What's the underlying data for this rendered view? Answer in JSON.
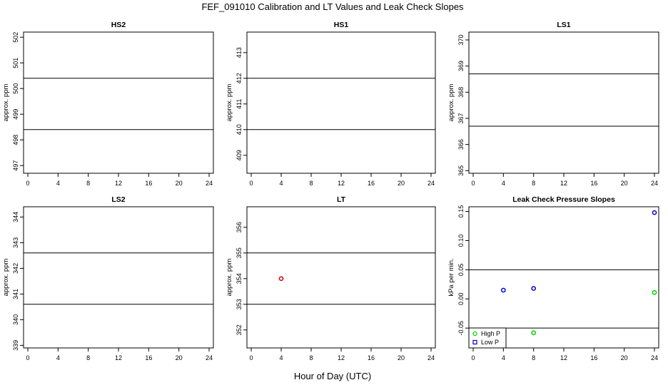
{
  "figure": {
    "title": "FEF_091010  Calibration and LT Values and Leak Check Slopes",
    "xlabel": "Hour of Day (UTC)"
  },
  "chart_data": [
    {
      "id": "hs2",
      "type": "scatter",
      "title": "HS2",
      "ylabel": "approx. ppm",
      "xlabel": "",
      "xlim": [
        0,
        24
      ],
      "ylim": [
        496.7,
        502.2
      ],
      "xticks": [
        0,
        4,
        8,
        12,
        16,
        20,
        24
      ],
      "yticks": [
        497,
        498,
        499,
        500,
        501,
        502
      ],
      "hlines": [
        498.4,
        500.4
      ],
      "series": [],
      "grid": false
    },
    {
      "id": "hs1",
      "type": "scatter",
      "title": "HS1",
      "ylabel": "approx. ppm",
      "xlabel": "",
      "xlim": [
        0,
        24
      ],
      "ylim": [
        408.3,
        413.8
      ],
      "xticks": [
        0,
        4,
        8,
        12,
        16,
        20,
        24
      ],
      "yticks": [
        409,
        410,
        411,
        412,
        413
      ],
      "hlines": [
        410,
        412
      ],
      "series": [],
      "grid": false
    },
    {
      "id": "ls1",
      "type": "scatter",
      "title": "LS1",
      "ylabel": "approx. ppm",
      "xlabel": "",
      "xlim": [
        0,
        24
      ],
      "ylim": [
        364.9,
        370.3
      ],
      "xticks": [
        0,
        4,
        8,
        12,
        16,
        20,
        24
      ],
      "yticks": [
        365,
        366,
        367,
        368,
        369,
        370
      ],
      "hlines": [
        366.7,
        368.7
      ],
      "series": [],
      "grid": false
    },
    {
      "id": "ls2",
      "type": "scatter",
      "title": "LS2",
      "ylabel": "approx. ppm",
      "xlabel": "",
      "xlim": [
        0,
        24
      ],
      "ylim": [
        338.9,
        344.4
      ],
      "xticks": [
        0,
        4,
        8,
        12,
        16,
        20,
        24
      ],
      "yticks": [
        339,
        340,
        341,
        342,
        343,
        344
      ],
      "hlines": [
        340.6,
        342.6
      ],
      "series": [],
      "grid": false
    },
    {
      "id": "lt",
      "type": "scatter",
      "title": "LT",
      "ylabel": "approx. ppm",
      "xlabel": "",
      "xlim": [
        0,
        24
      ],
      "ylim": [
        351.3,
        356.8
      ],
      "xticks": [
        0,
        4,
        8,
        12,
        16,
        20,
        24
      ],
      "yticks": [
        352,
        353,
        354,
        355,
        356
      ],
      "hlines": [
        353,
        355
      ],
      "series": [
        {
          "marker": "circle",
          "color": "#dd0000",
          "points": [
            {
              "x": 4,
              "y": 354
            }
          ]
        }
      ],
      "grid": false
    },
    {
      "id": "leak",
      "type": "scatter",
      "title": "Leak Check Pressure Slopes",
      "ylabel": "kPa per min.",
      "xlabel": "",
      "xlim": [
        0,
        24
      ],
      "ylim": [
        -0.084,
        0.158
      ],
      "xticks": [
        0,
        4,
        8,
        12,
        16,
        20,
        24
      ],
      "yticks": [
        -0.05,
        0.0,
        0.05,
        0.1,
        0.15
      ],
      "yticklabels": [
        "-0.05",
        "0.00",
        "0.05",
        "0.10",
        "0.15"
      ],
      "hlines": [
        -0.05,
        0.05
      ],
      "legend_position": "bottom-left",
      "series": [
        {
          "name": "High P",
          "marker": "circle",
          "color": "#00cc00",
          "points": [
            {
              "x": 8,
              "y": -0.058
            },
            {
              "x": 24,
              "y": 0.011
            }
          ]
        },
        {
          "name": "Low P",
          "marker": "circle",
          "color": "#0000cc",
          "points": [
            {
              "x": 4,
              "y": 0.015
            },
            {
              "x": 8,
              "y": 0.018
            },
            {
              "x": 24,
              "y": 0.148
            }
          ]
        }
      ],
      "grid": false
    }
  ]
}
